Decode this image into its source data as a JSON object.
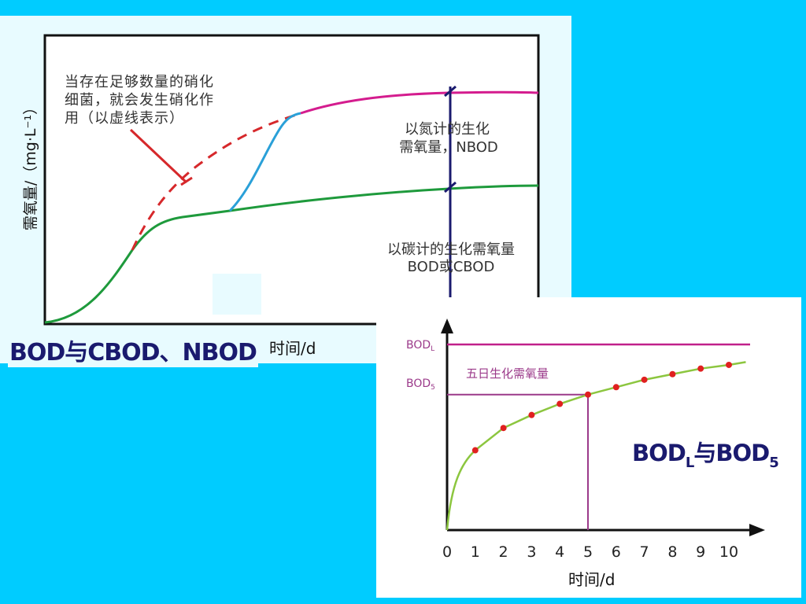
{
  "chart_data": [
    {
      "type": "line",
      "title": "BOD与CBOD、NBOD",
      "xlabel": "时间/d",
      "ylabel": "需氧量/（mg·L⁻¹）",
      "annotations": {
        "nitrify_note": [
          "当存在足够数量的硝化",
          "细菌，就会发生硝化作",
          "用（以虚线表示）"
        ],
        "nbod": [
          "以氮计的生化",
          "需氧量，NBOD"
        ],
        "cbod": [
          "以碳计的生化需氧量",
          "BOD或CBOD"
        ]
      },
      "colors": {
        "cbod": "#1E9A3C",
        "dashed": "#D6282B",
        "transition": "#2AA0D8",
        "nbod": "#D41C8E",
        "divider": "#1A1A6E"
      }
    },
    {
      "type": "line",
      "title_parts": {
        "a": "BOD",
        "a_sub": "L",
        "mid": "与",
        "b": "BOD",
        "b_sub": "5"
      },
      "xlabel": "时间/d",
      "x_ticks": [
        0,
        1,
        2,
        3,
        4,
        5,
        6,
        7,
        8,
        9,
        10
      ],
      "bodl_label": {
        "main": "BOD",
        "sub": "L"
      },
      "bod5_label": {
        "main": "BOD",
        "sub": "5"
      },
      "five_day_label": "五日生化需氧量",
      "points_x": [
        1,
        2,
        3,
        4,
        5,
        6,
        7,
        8,
        9,
        10
      ],
      "points_y": [
        0.43,
        0.55,
        0.62,
        0.68,
        0.73,
        0.77,
        0.81,
        0.84,
        0.87,
        0.89
      ],
      "bodl_level": 1.0,
      "bod5_day": 5,
      "colors": {
        "curve": "#8CC63F",
        "dot": "#E02020",
        "bodl": "#C0208A",
        "marker": "#9B3A8A"
      }
    }
  ]
}
